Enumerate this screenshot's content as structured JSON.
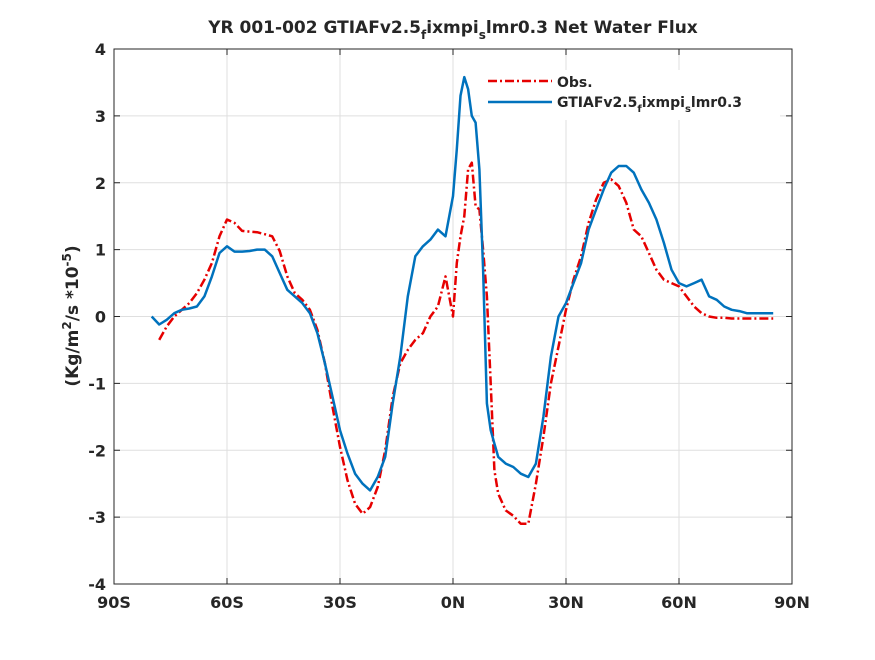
{
  "chart_data": {
    "type": "line",
    "title": {
      "pre": "YR 001-002 GTIAFv2.5",
      "sub1": "f",
      "mid": "ixmpi",
      "sub2": "s",
      "post": "lmr0.3  Net Water Flux"
    },
    "ylabel": {
      "pre": "(Kg/m",
      "sup1": "2",
      "mid": "/s *10",
      "sup2": "-5",
      "post": ")"
    },
    "xlim": [
      -90,
      90
    ],
    "ylim": [
      -4,
      4
    ],
    "grid": true,
    "legend_position": "top-right",
    "x_ticks": [
      {
        "value": -90,
        "label": "90S"
      },
      {
        "value": -60,
        "label": "60S"
      },
      {
        "value": -30,
        "label": "30S"
      },
      {
        "value": 0,
        "label": "0N"
      },
      {
        "value": 30,
        "label": "30N"
      },
      {
        "value": 60,
        "label": "60N"
      },
      {
        "value": 90,
        "label": "90N"
      }
    ],
    "y_ticks": [
      {
        "value": -4,
        "label": "-4"
      },
      {
        "value": -3,
        "label": "-3"
      },
      {
        "value": -2,
        "label": "-2"
      },
      {
        "value": -1,
        "label": "-1"
      },
      {
        "value": 0,
        "label": "0"
      },
      {
        "value": 1,
        "label": "1"
      },
      {
        "value": 2,
        "label": "2"
      },
      {
        "value": 3,
        "label": "3"
      },
      {
        "value": 4,
        "label": "4"
      }
    ],
    "series": [
      {
        "name": "Obs.",
        "legend": {
          "pre": "Obs."
        },
        "color": "#e60000",
        "dash": "dashdot",
        "x": [
          -78,
          -76,
          -74,
          -72,
          -70,
          -68,
          -66,
          -64,
          -62,
          -60,
          -58,
          -56,
          -54,
          -52,
          -50,
          -48,
          -46,
          -44,
          -42,
          -40,
          -38,
          -36,
          -34,
          -32,
          -30,
          -28,
          -26,
          -24,
          -22,
          -20,
          -18,
          -16,
          -14,
          -12,
          -10,
          -8,
          -6,
          -4,
          -2,
          0,
          1,
          2,
          3,
          4,
          5,
          6,
          7,
          8,
          9,
          10,
          11,
          12,
          14,
          16,
          18,
          20,
          22,
          24,
          26,
          28,
          30,
          32,
          34,
          36,
          38,
          40,
          42,
          44,
          46,
          48,
          50,
          52,
          54,
          56,
          58,
          60,
          62,
          64,
          66,
          68,
          70,
          72,
          74,
          76,
          78,
          80,
          82,
          85
        ],
        "y": [
          -0.35,
          -0.15,
          0.0,
          0.1,
          0.2,
          0.35,
          0.55,
          0.8,
          1.2,
          1.45,
          1.4,
          1.28,
          1.27,
          1.26,
          1.23,
          1.2,
          0.98,
          0.6,
          0.35,
          0.25,
          0.1,
          -0.2,
          -0.7,
          -1.35,
          -1.95,
          -2.45,
          -2.8,
          -2.95,
          -2.85,
          -2.55,
          -2.0,
          -1.2,
          -0.7,
          -0.5,
          -0.35,
          -0.25,
          0.0,
          0.15,
          0.6,
          0.0,
          0.8,
          1.2,
          1.5,
          2.2,
          2.3,
          1.65,
          1.6,
          1.0,
          0.3,
          -1.0,
          -2.3,
          -2.65,
          -2.9,
          -2.98,
          -3.1,
          -3.1,
          -2.5,
          -1.8,
          -1.0,
          -0.45,
          0.1,
          0.55,
          0.9,
          1.4,
          1.75,
          2.0,
          2.05,
          1.95,
          1.7,
          1.3,
          1.2,
          0.95,
          0.7,
          0.55,
          0.5,
          0.45,
          0.3,
          0.15,
          0.05,
          0.0,
          -0.02,
          -0.02,
          -0.03,
          -0.03,
          -0.03,
          -0.03,
          -0.03,
          -0.03
        ]
      },
      {
        "name": "GTIAFv2.5_fixmpi_slmr0.3",
        "legend": {
          "pre": "GTIAFv2.5",
          "sub1": "f",
          "mid": "ixmpi",
          "sub2": "s",
          "post": "lmr0.3"
        },
        "color": "#0072bd",
        "dash": "solid",
        "x": [
          -80,
          -78,
          -76,
          -74,
          -72,
          -70,
          -68,
          -66,
          -64,
          -62,
          -60,
          -58,
          -56,
          -54,
          -52,
          -50,
          -48,
          -46,
          -44,
          -42,
          -40,
          -38,
          -36,
          -34,
          -32,
          -30,
          -28,
          -26,
          -24,
          -22,
          -20,
          -18,
          -16,
          -14,
          -12,
          -10,
          -8,
          -6,
          -4,
          -2,
          0,
          1,
          2,
          3,
          4,
          5,
          6,
          7,
          8,
          9,
          10,
          11,
          12,
          14,
          16,
          18,
          20,
          22,
          24,
          26,
          28,
          30,
          32,
          34,
          36,
          38,
          40,
          42,
          44,
          46,
          48,
          50,
          52,
          54,
          56,
          58,
          60,
          62,
          64,
          66,
          68,
          70,
          72,
          74,
          76,
          78,
          80,
          82,
          85
        ],
        "y": [
          0.0,
          -0.12,
          -0.05,
          0.05,
          0.1,
          0.12,
          0.15,
          0.3,
          0.6,
          0.95,
          1.05,
          0.97,
          0.97,
          0.98,
          1.0,
          1.0,
          0.9,
          0.65,
          0.4,
          0.3,
          0.2,
          0.05,
          -0.25,
          -0.7,
          -1.2,
          -1.7,
          -2.05,
          -2.35,
          -2.5,
          -2.6,
          -2.4,
          -2.1,
          -1.3,
          -0.6,
          0.3,
          0.9,
          1.05,
          1.15,
          1.3,
          1.2,
          1.8,
          2.5,
          3.3,
          3.58,
          3.4,
          3.0,
          2.9,
          2.2,
          0.7,
          -1.3,
          -1.7,
          -1.9,
          -2.1,
          -2.2,
          -2.25,
          -2.35,
          -2.4,
          -2.2,
          -1.5,
          -0.6,
          0.0,
          0.2,
          0.5,
          0.8,
          1.3,
          1.6,
          1.9,
          2.15,
          2.25,
          2.25,
          2.15,
          1.9,
          1.7,
          1.45,
          1.1,
          0.7,
          0.5,
          0.45,
          0.5,
          0.55,
          0.3,
          0.25,
          0.15,
          0.1,
          0.08,
          0.05,
          0.05,
          0.05,
          0.05
        ]
      }
    ]
  }
}
